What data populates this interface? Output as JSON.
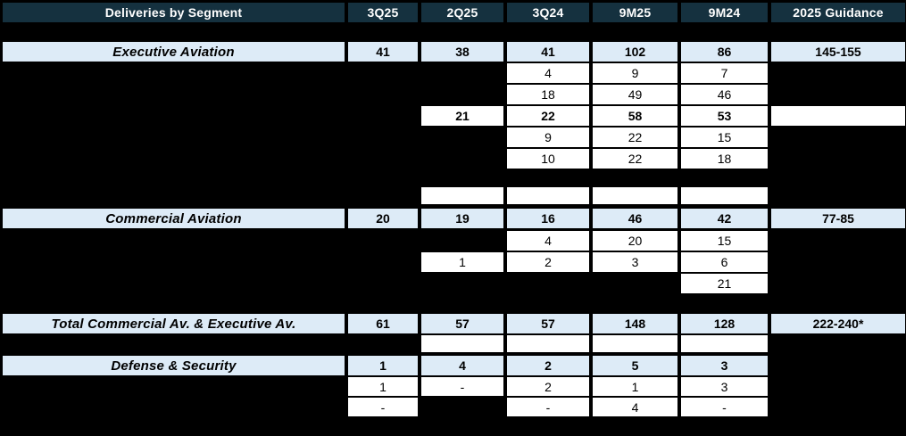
{
  "table": {
    "title": "Deliveries by Segment",
    "columns": [
      "3Q25",
      "2Q25",
      "3Q24",
      "9M25",
      "9M24",
      "2025 Guidance"
    ],
    "colors": {
      "header_bg": "#15313F",
      "header_text": "#FFFFFF",
      "segment_row_bg": "#DDEBF7",
      "detail_row_bg": "#FFFFFF",
      "page_bg": "#000000",
      "body_text": "#000000"
    },
    "rows": [
      {
        "type": "segment",
        "label": "Executive Aviation",
        "values": [
          "41",
          "38",
          "41",
          "102",
          "86"
        ],
        "guidance": "145-155"
      },
      {
        "type": "detail",
        "values": [
          null,
          null,
          "4",
          "9",
          "7"
        ],
        "guidance": null
      },
      {
        "type": "detail",
        "values": [
          null,
          null,
          "18",
          "49",
          "46"
        ],
        "guidance": null
      },
      {
        "type": "detail",
        "bold": true,
        "values": [
          null,
          "21",
          "22",
          "58",
          "53"
        ],
        "guidance": ""
      },
      {
        "type": "detail",
        "values": [
          null,
          null,
          "9",
          "22",
          "15"
        ],
        "guidance": null
      },
      {
        "type": "detail",
        "values": [
          null,
          null,
          "10",
          "22",
          "18"
        ],
        "guidance": null
      },
      {
        "type": "spacer",
        "values": [
          null,
          "",
          "",
          "",
          ""
        ],
        "guidance": null
      },
      {
        "type": "segment",
        "label": "Commercial Aviation",
        "values": [
          "20",
          "19",
          "16",
          "46",
          "42"
        ],
        "guidance": "77-85"
      },
      {
        "type": "detail",
        "values": [
          null,
          null,
          "4",
          "20",
          "15"
        ],
        "guidance": null
      },
      {
        "type": "detail",
        "values": [
          null,
          "1",
          "2",
          "3",
          "6"
        ],
        "guidance": null
      },
      {
        "type": "detail",
        "values": [
          null,
          null,
          null,
          null,
          "21"
        ],
        "guidance": null
      },
      {
        "type": "segment",
        "label": "Total Commercial Av. & Executive Av.",
        "values": [
          "61",
          "57",
          "57",
          "148",
          "128"
        ],
        "guidance": "222-240*"
      },
      {
        "type": "spacer",
        "values": [
          null,
          "",
          "",
          "",
          ""
        ],
        "guidance": null
      },
      {
        "type": "segment",
        "label": "Defense & Security",
        "values": [
          "1",
          "4",
          "2",
          "5",
          "3"
        ],
        "guidance": null
      },
      {
        "type": "detail",
        "values": [
          "1",
          "-",
          "2",
          "1",
          "3"
        ],
        "guidance": null
      },
      {
        "type": "detail",
        "values": [
          "-",
          null,
          "-",
          "4",
          "-"
        ],
        "guidance": null
      }
    ]
  }
}
